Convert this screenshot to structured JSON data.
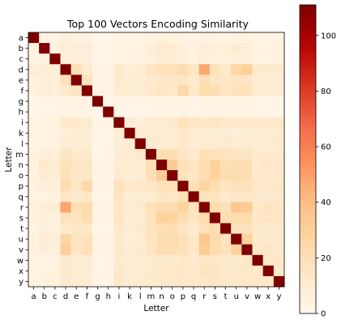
{
  "chart_data": {
    "type": "heatmap",
    "title": "Top 100 Vectors Encoding Similarity",
    "xlabel": "Letter",
    "ylabel": "Letter",
    "letters": [
      "a",
      "b",
      "c",
      "d",
      "e",
      "f",
      "g",
      "h",
      "i",
      "k",
      "l",
      "m",
      "n",
      "o",
      "p",
      "q",
      "r",
      "s",
      "t",
      "u",
      "v",
      "w",
      "x",
      "y"
    ],
    "values": [
      [
        111,
        4,
        3,
        8,
        5,
        5,
        1,
        1,
        4,
        4,
        3,
        5,
        6,
        5,
        5,
        3,
        6,
        5,
        4,
        5,
        5,
        4,
        3,
        4
      ],
      [
        4,
        111,
        5,
        9,
        8,
        8,
        2,
        2,
        5,
        5,
        5,
        8,
        12,
        10,
        7,
        5,
        8,
        7,
        7,
        10,
        8,
        4,
        5,
        6
      ],
      [
        3,
        5,
        111,
        7,
        7,
        7,
        2,
        2,
        5,
        5,
        5,
        7,
        10,
        9,
        7,
        5,
        8,
        6,
        6,
        7,
        7,
        3,
        5,
        5
      ],
      [
        8,
        9,
        7,
        111,
        19,
        12,
        3,
        3,
        13,
        8,
        10,
        16,
        18,
        19,
        22,
        15,
        48,
        18,
        12,
        26,
        30,
        12,
        12,
        11
      ],
      [
        5,
        8,
        7,
        19,
        111,
        16,
        3,
        3,
        11,
        9,
        9,
        12,
        14,
        14,
        15,
        11,
        20,
        16,
        14,
        16,
        15,
        10,
        10,
        9
      ],
      [
        5,
        8,
        7,
        12,
        16,
        111,
        3,
        3,
        10,
        9,
        9,
        13,
        15,
        14,
        24,
        14,
        22,
        21,
        14,
        18,
        19,
        10,
        10,
        9
      ],
      [
        1,
        2,
        2,
        3,
        3,
        3,
        111,
        1,
        2,
        2,
        2,
        2,
        3,
        3,
        3,
        2,
        3,
        3,
        2,
        3,
        3,
        2,
        2,
        2
      ],
      [
        1,
        2,
        2,
        3,
        3,
        3,
        1,
        111,
        2,
        2,
        2,
        2,
        3,
        3,
        3,
        2,
        3,
        3,
        2,
        3,
        3,
        2,
        2,
        2
      ],
      [
        4,
        5,
        5,
        13,
        11,
        10,
        2,
        2,
        111,
        9,
        8,
        10,
        10,
        11,
        18,
        15,
        14,
        15,
        13,
        12,
        13,
        11,
        13,
        14
      ],
      [
        4,
        5,
        5,
        8,
        9,
        9,
        2,
        2,
        9,
        111,
        10,
        10,
        10,
        9,
        13,
        9,
        10,
        9,
        9,
        8,
        9,
        10,
        9,
        10
      ],
      [
        3,
        5,
        5,
        10,
        9,
        9,
        2,
        2,
        8,
        10,
        111,
        11,
        10,
        9,
        13,
        9,
        11,
        10,
        12,
        10,
        11,
        9,
        9,
        11
      ],
      [
        5,
        8,
        7,
        16,
        12,
        13,
        2,
        2,
        10,
        10,
        11,
        111,
        20,
        20,
        15,
        11,
        19,
        17,
        17,
        16,
        16,
        12,
        11,
        12
      ],
      [
        6,
        12,
        10,
        18,
        14,
        15,
        3,
        3,
        10,
        10,
        10,
        20,
        111,
        32,
        19,
        15,
        21,
        29,
        20,
        21,
        21,
        12,
        14,
        13
      ],
      [
        5,
        10,
        9,
        19,
        14,
        14,
        3,
        3,
        11,
        9,
        9,
        20,
        32,
        111,
        18,
        14,
        21,
        28,
        21,
        22,
        21,
        12,
        13,
        13
      ],
      [
        5,
        7,
        7,
        22,
        15,
        24,
        3,
        3,
        18,
        13,
        13,
        15,
        19,
        18,
        111,
        19,
        27,
        21,
        15,
        19,
        19,
        14,
        14,
        14
      ],
      [
        3,
        5,
        5,
        15,
        11,
        14,
        2,
        2,
        15,
        9,
        9,
        11,
        15,
        14,
        19,
        111,
        17,
        16,
        12,
        14,
        14,
        11,
        11,
        12
      ],
      [
        6,
        8,
        8,
        48,
        20,
        22,
        3,
        3,
        14,
        10,
        11,
        19,
        21,
        21,
        27,
        17,
        111,
        22,
        19,
        35,
        33,
        14,
        16,
        14
      ],
      [
        5,
        7,
        6,
        18,
        16,
        21,
        3,
        3,
        15,
        9,
        10,
        17,
        29,
        28,
        21,
        16,
        22,
        111,
        21,
        22,
        22,
        14,
        15,
        15
      ],
      [
        4,
        7,
        6,
        12,
        14,
        14,
        2,
        2,
        13,
        9,
        12,
        17,
        20,
        21,
        15,
        12,
        19,
        21,
        111,
        17,
        18,
        13,
        11,
        13
      ],
      [
        5,
        10,
        7,
        26,
        16,
        18,
        3,
        3,
        12,
        8,
        10,
        16,
        21,
        22,
        19,
        14,
        35,
        22,
        17,
        111,
        29,
        12,
        13,
        13
      ],
      [
        5,
        8,
        7,
        30,
        15,
        19,
        3,
        3,
        13,
        9,
        11,
        16,
        21,
        21,
        19,
        14,
        33,
        22,
        18,
        29,
        111,
        14,
        14,
        13
      ],
      [
        4,
        4,
        3,
        12,
        10,
        10,
        2,
        2,
        11,
        10,
        9,
        12,
        12,
        12,
        14,
        11,
        14,
        14,
        13,
        12,
        14,
        111,
        13,
        14
      ],
      [
        3,
        5,
        5,
        12,
        10,
        10,
        2,
        2,
        13,
        9,
        9,
        11,
        14,
        13,
        14,
        11,
        16,
        15,
        11,
        13,
        14,
        13,
        111,
        13
      ],
      [
        4,
        6,
        5,
        11,
        9,
        9,
        2,
        2,
        14,
        10,
        11,
        12,
        13,
        13,
        14,
        12,
        14,
        15,
        13,
        13,
        13,
        14,
        13,
        111
      ]
    ],
    "vmin": 0,
    "vmax": 111,
    "colormap": "OrRd",
    "colorbar_ticks": [
      0,
      20,
      40,
      60,
      80,
      100
    ]
  }
}
